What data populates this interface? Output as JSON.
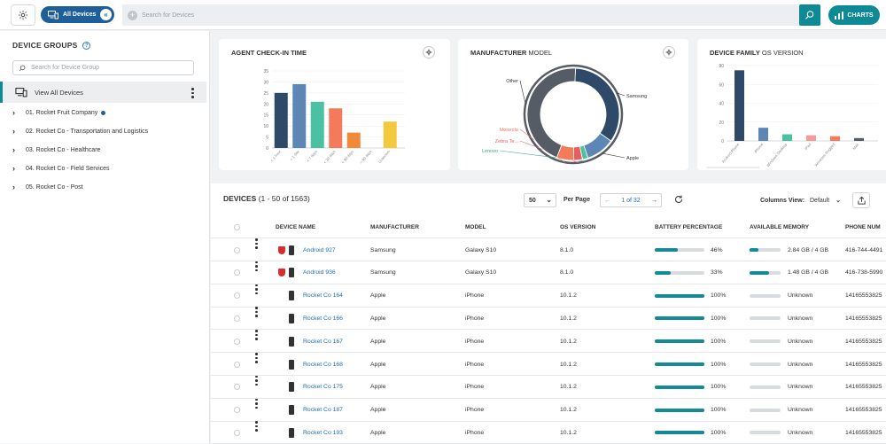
{
  "topbar": {
    "all_devices_label": "All Devices",
    "search_placeholder": "Search for Devices",
    "charts_label": "CHARTS"
  },
  "sidebar": {
    "title": "DEVICE GROUPS",
    "search_placeholder": "Search for Device Group",
    "view_all": "View All Devices",
    "groups": [
      {
        "label": "01. Rocket Fruit Company"
      },
      {
        "label": "02. Rocket Co - Transportation and Logistics"
      },
      {
        "label": "03. Rocket Co - Healthcare"
      },
      {
        "label": "04. Rocket Co - Field Services"
      },
      {
        "label": "05. Rocket Co - Post"
      }
    ]
  },
  "cards": {
    "checkin": {
      "title": "AGENT CHECK-IN TIME"
    },
    "manufacturer": {
      "title_bold": "MANUFACTURER",
      "title_thin": " MODEL"
    },
    "family": {
      "title_bold": "DEVICE FAMILY",
      "title_thin": " OS VERSION"
    }
  },
  "chart_data": [
    {
      "type": "bar",
      "title": "AGENT CHECK-IN TIME",
      "categories": [
        "< 1 hour",
        "< 1 day",
        "< 7 days",
        "< 30 days",
        "< 90 days",
        "> 90 days",
        "Unknown"
      ],
      "values": [
        25,
        29,
        21,
        18,
        7,
        0,
        12
      ],
      "colors": [
        "#2f4a68",
        "#5b86b5",
        "#4cc0a2",
        "#f37a5b",
        "#f08a3a",
        "#cccccc",
        "#f4c93e"
      ],
      "ylim": [
        0,
        35
      ],
      "yticks": [
        0,
        5,
        10,
        15,
        20,
        25,
        30,
        35
      ]
    },
    {
      "type": "pie",
      "title": "MANUFACTURER MODEL",
      "labels": [
        "Samsung",
        "Apple",
        "Lenovo",
        "Zebra Te...",
        "Motorola",
        "Other"
      ],
      "values": [
        34,
        10,
        2,
        3,
        6,
        45
      ],
      "colors": [
        "#2f4a68",
        "#5b86b5",
        "#4cc0a2",
        "#e85d5d",
        "#f37a5b",
        "#555c66"
      ],
      "label_colors": [
        "#333333",
        "#333333",
        "#3aa88a",
        "#e85d5d",
        "#f37a5b",
        "#333333"
      ]
    },
    {
      "type": "bar",
      "title": "DEVICE FAMILY OS VERSION",
      "categories": [
        "Android Phone",
        "iPhone",
        "Windows Desktop",
        "iPad",
        "Windows Rugged",
        "Mac"
      ],
      "values": [
        75,
        14,
        7,
        6,
        5,
        3
      ],
      "colors": [
        "#2f4a68",
        "#5b86b5",
        "#4cc0a2",
        "#f39a9a",
        "#f37a5b",
        "#555c66"
      ],
      "ylim": [
        0,
        80
      ],
      "yticks": [
        0,
        20,
        40,
        60,
        80
      ]
    }
  ],
  "table": {
    "title_bold": "DEVICES",
    "title_thin": " (1 - 50 of 1563)",
    "per_page_value": "50",
    "per_page_label": "Per Page",
    "page_indicator": "1 of 32",
    "columns_view_label": "Columns View:",
    "columns_view_value": "Default",
    "headers": {
      "name": "DEVICE NAME",
      "manufacturer": "MANUFACTURER",
      "model": "MODEL",
      "os": "OS VERSION",
      "battery": "BATTERY PERCENTAGE",
      "memory": "AVAILABLE MEMORY",
      "phone": "PHONE NUM"
    },
    "rows": [
      {
        "name": "Android 927",
        "manufacturer": "Samsung",
        "model": "Galaxy S10",
        "os": "8.1.0",
        "battery": "46%",
        "battery_fraction": 0.46,
        "memory": "2.84 GB / 4 GB",
        "memory_fraction": 0.29,
        "phone": "416-744-4491",
        "alert": true
      },
      {
        "name": "Android 936",
        "manufacturer": "Samsung",
        "model": "Galaxy S10",
        "os": "8.1.0",
        "battery": "33%",
        "battery_fraction": 0.33,
        "memory": "1.48 GB / 4 GB",
        "memory_fraction": 0.63,
        "phone": "416-738-5990",
        "alert": true
      },
      {
        "name": "Rocket Co 164",
        "manufacturer": "Apple",
        "model": "iPhone",
        "os": "10.1.2",
        "battery": "100%",
        "battery_fraction": 1.0,
        "memory": "Unknown",
        "memory_fraction": 0,
        "phone": "14165553825",
        "alert": false
      },
      {
        "name": "Rocket Co 166",
        "manufacturer": "Apple",
        "model": "iPhone",
        "os": "10.1.2",
        "battery": "100%",
        "battery_fraction": 1.0,
        "memory": "Unknown",
        "memory_fraction": 0,
        "phone": "14165553825",
        "alert": false
      },
      {
        "name": "Rocket Co 167",
        "manufacturer": "Apple",
        "model": "iPhone",
        "os": "10.1.2",
        "battery": "100%",
        "battery_fraction": 1.0,
        "memory": "Unknown",
        "memory_fraction": 0,
        "phone": "14165553825",
        "alert": false
      },
      {
        "name": "Rocket Co 168",
        "manufacturer": "Apple",
        "model": "iPhone",
        "os": "10.1.2",
        "battery": "100%",
        "battery_fraction": 1.0,
        "memory": "Unknown",
        "memory_fraction": 0,
        "phone": "14165553825",
        "alert": false
      },
      {
        "name": "Rocket Co 175",
        "manufacturer": "Apple",
        "model": "iPhone",
        "os": "10.1.2",
        "battery": "100%",
        "battery_fraction": 1.0,
        "memory": "Unknown",
        "memory_fraction": 0,
        "phone": "14165553825",
        "alert": false
      },
      {
        "name": "Rocket Co 187",
        "manufacturer": "Apple",
        "model": "iPhone",
        "os": "10.1.2",
        "battery": "100%",
        "battery_fraction": 1.0,
        "memory": "Unknown",
        "memory_fraction": 0,
        "phone": "14165553825",
        "alert": false
      },
      {
        "name": "Rocket Co 193",
        "manufacturer": "Apple",
        "model": "iPhone",
        "os": "10.1.2",
        "battery": "100%",
        "battery_fraction": 1.0,
        "memory": "Unknown",
        "memory_fraction": 0,
        "phone": "14165553825",
        "alert": false
      }
    ]
  },
  "colors": {
    "accent": "#0e8a96",
    "brand": "#1e5f9a",
    "link": "#1e6fb4"
  }
}
